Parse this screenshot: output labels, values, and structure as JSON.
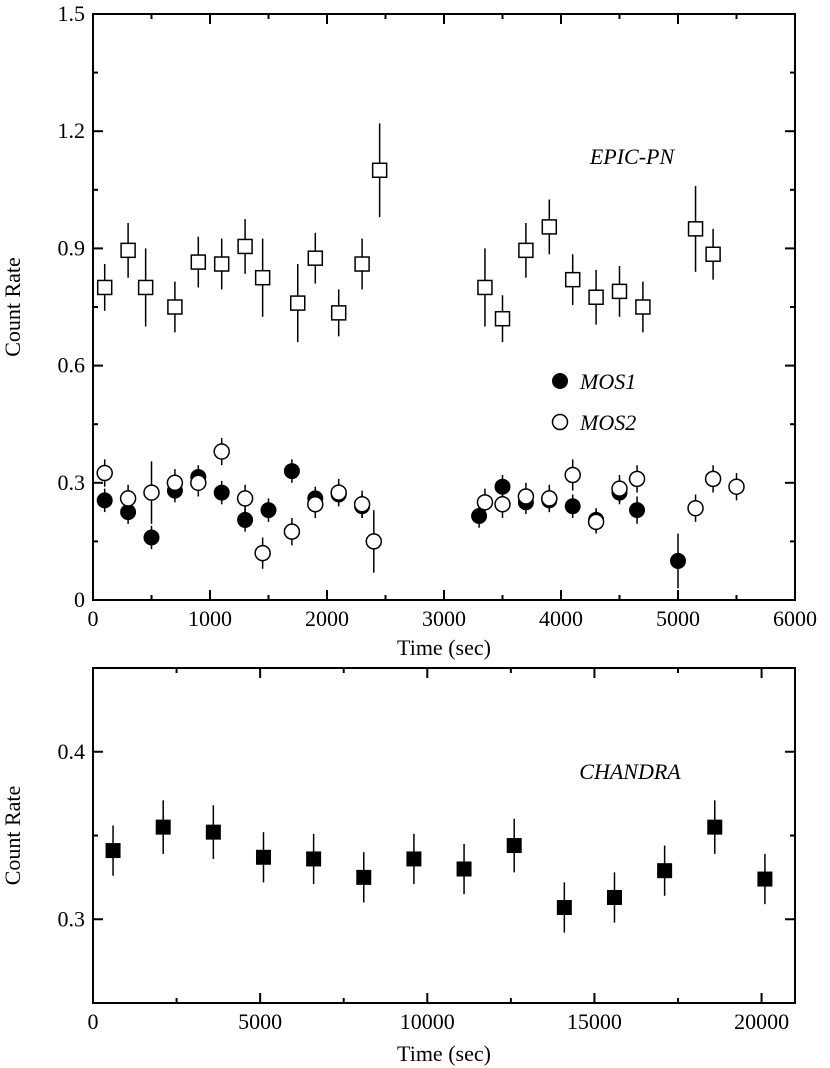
{
  "chart_data": [
    {
      "type": "scatter",
      "xlabel": "Time (sec)",
      "ylabel": "Count Rate",
      "xlim": [
        0,
        6000
      ],
      "ylim": [
        0,
        1.5
      ],
      "xticks": [
        0,
        1000,
        2000,
        3000,
        4000,
        5000,
        6000
      ],
      "xtick_labels": [
        "0",
        "1000",
        "2000",
        "3000",
        "4000",
        "5000",
        "6000"
      ],
      "yticks": [
        0,
        0.3,
        0.6,
        0.9,
        1.2,
        1.5
      ],
      "ytick_labels": [
        "0",
        "0.3",
        "0.6",
        "0.9",
        "1.2",
        "1.5"
      ],
      "annotations": [
        {
          "text": "EPIC-PN"
        }
      ],
      "legend": {
        "placement": "center-right",
        "entries": [
          "MOS1",
          "MOS2"
        ]
      },
      "series": [
        {
          "name": "EPIC-PN",
          "marker": "open-square",
          "points": [
            [
              100,
              0.8,
              0.06
            ],
            [
              300,
              0.895,
              0.07
            ],
            [
              450,
              0.8,
              0.1
            ],
            [
              700,
              0.75,
              0.065
            ],
            [
              900,
              0.865,
              0.065
            ],
            [
              1100,
              0.86,
              0.065
            ],
            [
              1300,
              0.905,
              0.07
            ],
            [
              1450,
              0.825,
              0.1
            ],
            [
              1750,
              0.76,
              0.1
            ],
            [
              1900,
              0.875,
              0.065
            ],
            [
              2100,
              0.735,
              0.06
            ],
            [
              2300,
              0.86,
              0.065
            ],
            [
              2450,
              1.1,
              0.12
            ],
            [
              3350,
              0.8,
              0.1
            ],
            [
              3500,
              0.72,
              0.06
            ],
            [
              3700,
              0.895,
              0.07
            ],
            [
              3900,
              0.955,
              0.07
            ],
            [
              4100,
              0.82,
              0.065
            ],
            [
              4300,
              0.775,
              0.07
            ],
            [
              4500,
              0.79,
              0.065
            ],
            [
              4700,
              0.75,
              0.065
            ],
            [
              5150,
              0.95,
              0.11
            ],
            [
              5300,
              0.885,
              0.065
            ]
          ]
        },
        {
          "name": "MOS1",
          "marker": "filled-circle",
          "points": [
            [
              100,
              0.255,
              0.03
            ],
            [
              300,
              0.225,
              0.03
            ],
            [
              500,
              0.16,
              0.03
            ],
            [
              700,
              0.28,
              0.03
            ],
            [
              900,
              0.315,
              0.03
            ],
            [
              1100,
              0.275,
              0.03
            ],
            [
              1300,
              0.205,
              0.03
            ],
            [
              1500,
              0.23,
              0.03
            ],
            [
              1700,
              0.33,
              0.03
            ],
            [
              1900,
              0.26,
              0.03
            ],
            [
              2100,
              0.27,
              0.03
            ],
            [
              2300,
              0.24,
              0.03
            ],
            [
              3300,
              0.215,
              0.03
            ],
            [
              3500,
              0.29,
              0.03
            ],
            [
              3700,
              0.25,
              0.03
            ],
            [
              3900,
              0.255,
              0.03
            ],
            [
              4100,
              0.24,
              0.03
            ],
            [
              4300,
              0.205,
              0.03
            ],
            [
              4500,
              0.275,
              0.03
            ],
            [
              4650,
              0.23,
              0.035
            ],
            [
              5000,
              0.1,
              0.07
            ]
          ]
        },
        {
          "name": "MOS2",
          "marker": "open-circle",
          "points": [
            [
              100,
              0.325,
              0.035
            ],
            [
              300,
              0.26,
              0.035
            ],
            [
              500,
              0.275,
              0.08
            ],
            [
              700,
              0.3,
              0.035
            ],
            [
              900,
              0.3,
              0.035
            ],
            [
              1100,
              0.38,
              0.035
            ],
            [
              1300,
              0.26,
              0.035
            ],
            [
              1450,
              0.12,
              0.04
            ],
            [
              1700,
              0.175,
              0.035
            ],
            [
              1900,
              0.245,
              0.035
            ],
            [
              2100,
              0.275,
              0.035
            ],
            [
              2300,
              0.245,
              0.035
            ],
            [
              2400,
              0.15,
              0.08
            ],
            [
              3350,
              0.25,
              0.035
            ],
            [
              3500,
              0.245,
              0.035
            ],
            [
              3700,
              0.265,
              0.035
            ],
            [
              3900,
              0.26,
              0.035
            ],
            [
              4100,
              0.32,
              0.04
            ],
            [
              4300,
              0.2,
              0.03
            ],
            [
              4500,
              0.285,
              0.035
            ],
            [
              4650,
              0.31,
              0.035
            ],
            [
              5150,
              0.235,
              0.035
            ],
            [
              5300,
              0.31,
              0.035
            ],
            [
              5500,
              0.29,
              0.035
            ]
          ]
        }
      ]
    },
    {
      "type": "scatter",
      "xlabel": "Time (sec)",
      "ylabel": "Count Rate",
      "xlim": [
        0,
        21000
      ],
      "ylim": [
        0.25,
        0.45
      ],
      "xticks": [
        0,
        5000,
        10000,
        15000,
        20000
      ],
      "xtick_labels": [
        "0",
        "5000",
        "10000",
        "15000",
        "20000"
      ],
      "yticks": [
        0.3,
        0.4
      ],
      "ytick_labels": [
        "0.3",
        "0.4"
      ],
      "annotations": [
        {
          "text": "CHANDRA"
        }
      ],
      "series": [
        {
          "name": "CHANDRA",
          "marker": "filled-square",
          "points": [
            [
              600,
              0.341,
              0.015
            ],
            [
              2100,
              0.355,
              0.016
            ],
            [
              3600,
              0.352,
              0.016
            ],
            [
              5100,
              0.337,
              0.015
            ],
            [
              6600,
              0.336,
              0.015
            ],
            [
              8100,
              0.325,
              0.015
            ],
            [
              9600,
              0.336,
              0.015
            ],
            [
              11100,
              0.33,
              0.015
            ],
            [
              12600,
              0.344,
              0.016
            ],
            [
              14100,
              0.307,
              0.015
            ],
            [
              15600,
              0.313,
              0.015
            ],
            [
              17100,
              0.329,
              0.015
            ],
            [
              18600,
              0.355,
              0.016
            ],
            [
              20100,
              0.324,
              0.015
            ]
          ]
        }
      ]
    }
  ]
}
